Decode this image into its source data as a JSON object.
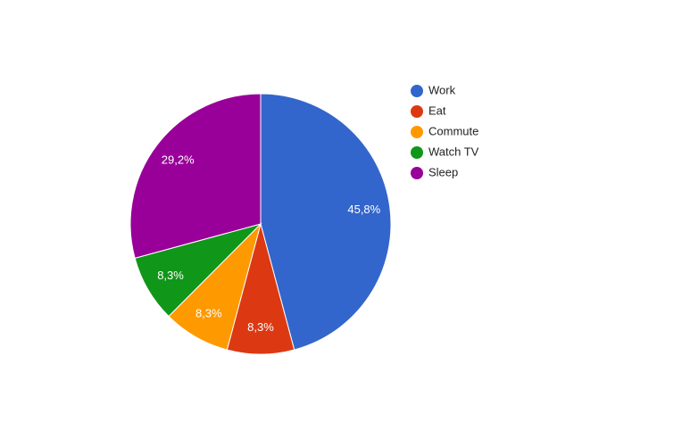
{
  "chart_data": {
    "type": "pie",
    "categories": [
      "Work",
      "Eat",
      "Commute",
      "Watch TV",
      "Sleep"
    ],
    "values": [
      45.8,
      8.3,
      8.3,
      8.3,
      29.2
    ],
    "value_labels": [
      "45,8%",
      "8,3%",
      "8,3%",
      "8,3%",
      "29,2%"
    ],
    "colors": [
      "#3366cc",
      "#dc3912",
      "#ff9900",
      "#109618",
      "#990099"
    ],
    "legend": "right"
  }
}
